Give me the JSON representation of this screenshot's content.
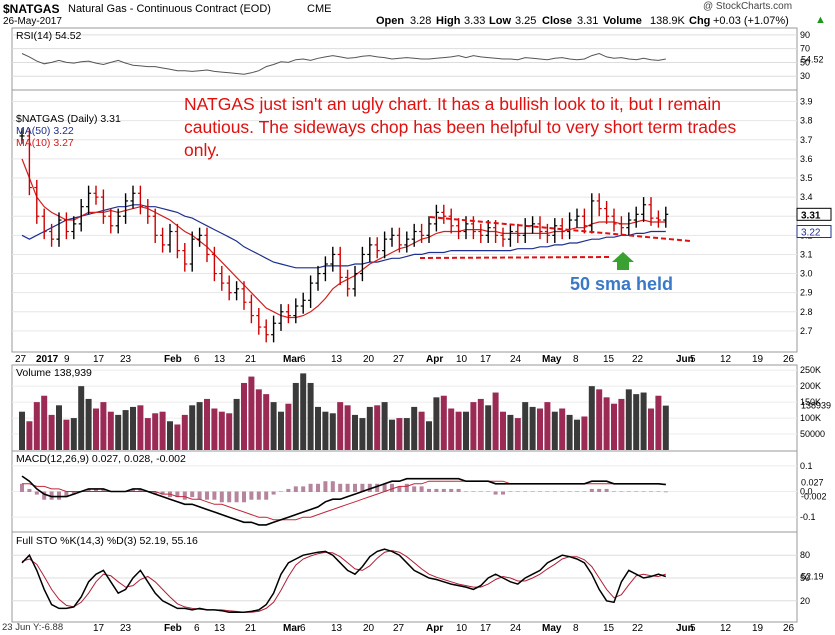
{
  "header": {
    "symbol": "$NATGAS",
    "name": "Natural Gas - Continuous Contract (EOD)",
    "exchange": "CME",
    "date": "26-May-2017",
    "open_label": "Open",
    "open": "3.28",
    "high_label": "High",
    "high": "3.33",
    "low_label": "Low",
    "low": "3.25",
    "close_label": "Close",
    "close": "3.31",
    "volume_label": "Volume",
    "volume": "138.9K",
    "chg_label": "Chg",
    "chg": "+0.03 (+1.07%)",
    "chg_arrow": "▲",
    "copyright": "@ StockCharts.com"
  },
  "annotation": {
    "text": "NATGAS just isn't an ugly chart.  It has a bullish look to it, but I remain cautious.  The sideways chop has been helpful to very short term trades only.",
    "callout": "50 sma held"
  },
  "colors": {
    "annotation_red": "#e01010",
    "callout_blue": "#3a78c8",
    "arrow_green": "#3aa032",
    "ma50": "#1f2f8f",
    "ma10": "#d21f1f",
    "up_bar": "#000000",
    "down_bar": "#cc0000",
    "volume_up": "#3a3a3a",
    "volume_down": "#9b2a55"
  },
  "chart_data": [
    {
      "type": "line",
      "panel": "rsi",
      "legend": "RSI(14) 54.52",
      "last_value": "54.52",
      "ylim": [
        10,
        100
      ],
      "yticks": [
        "90",
        "70",
        "50",
        "30"
      ],
      "values": [
        63,
        58,
        52,
        48,
        50,
        53,
        50,
        49,
        51,
        52,
        49,
        47,
        50,
        53,
        49,
        46,
        45,
        44,
        44,
        42,
        40,
        38,
        38,
        37,
        38,
        39,
        37,
        36,
        35,
        34,
        33,
        35,
        38,
        44,
        47,
        51,
        50,
        54,
        55,
        53,
        56,
        58,
        60,
        58,
        56,
        57,
        59,
        60,
        58,
        57,
        55,
        56,
        57,
        56,
        55,
        55,
        56,
        57,
        58,
        60,
        57,
        60,
        58,
        57,
        56,
        55,
        55,
        54,
        57,
        56,
        55,
        54,
        56,
        57,
        55,
        54,
        55,
        60,
        63,
        58,
        56,
        57,
        55,
        54,
        56,
        54,
        53,
        55
      ]
    },
    {
      "type": "ohlc",
      "panel": "price",
      "legend": [
        "$NATGAS (Daily) 3.31",
        "MA(50) 3.22",
        "MA(10) 3.27"
      ],
      "ylim": [
        2.6,
        3.95
      ],
      "yticks": [
        "3.9",
        "3.8",
        "3.7",
        "3.6",
        "3.5",
        "3.4",
        "3.3",
        "3.2",
        "3.1",
        "3.0",
        "2.9",
        "2.8",
        "2.7"
      ],
      "x_labels": [
        "27",
        "2017",
        "9",
        "17",
        "23",
        "Feb",
        "6",
        "13",
        "21",
        "Mar",
        "6",
        "13",
        "20",
        "27",
        "Apr",
        "10",
        "17",
        "24",
        "May",
        "8",
        "15",
        "22",
        "Jun",
        "5",
        "12",
        "19",
        "26"
      ],
      "last_value": "3.31",
      "ma50_last": "3.22",
      "close": [
        3.72,
        3.45,
        3.3,
        3.22,
        3.18,
        3.28,
        3.22,
        3.26,
        3.35,
        3.42,
        3.4,
        3.3,
        3.25,
        3.3,
        3.38,
        3.42,
        3.35,
        3.3,
        3.2,
        3.15,
        3.22,
        3.12,
        3.05,
        3.18,
        3.2,
        3.1,
        3.0,
        2.95,
        2.9,
        2.92,
        2.85,
        2.78,
        2.72,
        2.68,
        2.74,
        2.8,
        2.78,
        2.83,
        2.86,
        2.95,
        3.0,
        3.05,
        3.1,
        2.98,
        2.92,
        3.0,
        3.1,
        3.15,
        3.12,
        3.18,
        3.2,
        3.15,
        3.18,
        3.22,
        3.2,
        3.26,
        3.32,
        3.3,
        3.25,
        3.22,
        3.26,
        3.22,
        3.2,
        3.24,
        3.2,
        3.18,
        3.22,
        3.2,
        3.25,
        3.26,
        3.22,
        3.2,
        3.25,
        3.22,
        3.28,
        3.3,
        3.25,
        3.38,
        3.34,
        3.3,
        3.26,
        3.24,
        3.28,
        3.31,
        3.36,
        3.29,
        3.28,
        3.31
      ],
      "ma50": [
        3.2,
        3.18,
        3.2,
        3.22,
        3.24,
        3.26,
        3.28,
        3.29,
        3.3,
        3.31,
        3.32,
        3.33,
        3.34,
        3.35,
        3.35,
        3.36,
        3.36,
        3.35,
        3.35,
        3.34,
        3.33,
        3.32,
        3.3,
        3.29,
        3.27,
        3.25,
        3.23,
        3.21,
        3.19,
        3.17,
        3.14,
        3.12,
        3.1,
        3.08,
        3.06,
        3.05,
        3.04,
        3.03,
        3.03,
        3.03,
        3.03,
        3.04,
        3.04,
        3.04,
        3.04,
        3.05,
        3.05,
        3.06,
        3.06,
        3.07,
        3.08,
        3.08,
        3.09,
        3.1,
        3.1,
        3.11,
        3.11,
        3.11,
        3.12,
        3.12,
        3.12,
        3.12,
        3.12,
        3.12,
        3.12,
        3.12,
        3.12,
        3.13,
        3.13,
        3.13,
        3.14,
        3.14,
        3.15,
        3.15,
        3.16,
        3.16,
        3.17,
        3.18,
        3.18,
        3.19,
        3.19,
        3.2,
        3.2,
        3.21,
        3.21,
        3.22,
        3.22,
        3.22
      ],
      "ma10": [
        3.6,
        3.5,
        3.4,
        3.35,
        3.32,
        3.3,
        3.28,
        3.28,
        3.3,
        3.32,
        3.32,
        3.32,
        3.33,
        3.32,
        3.33,
        3.34,
        3.35,
        3.34,
        3.32,
        3.3,
        3.28,
        3.25,
        3.22,
        3.2,
        3.17,
        3.14,
        3.1,
        3.06,
        3.02,
        2.98,
        2.94,
        2.9,
        2.86,
        2.82,
        2.8,
        2.78,
        2.77,
        2.77,
        2.78,
        2.8,
        2.83,
        2.87,
        2.92,
        2.95,
        2.97,
        2.99,
        3.02,
        3.05,
        3.07,
        3.09,
        3.11,
        3.13,
        3.14,
        3.16,
        3.18,
        3.19,
        3.21,
        3.22,
        3.22,
        3.22,
        3.23,
        3.23,
        3.23,
        3.22,
        3.22,
        3.21,
        3.21,
        3.21,
        3.21,
        3.21,
        3.21,
        3.21,
        3.22,
        3.22,
        3.23,
        3.24,
        3.24,
        3.26,
        3.27,
        3.27,
        3.27,
        3.26,
        3.26,
        3.27,
        3.28,
        3.27,
        3.27,
        3.27
      ]
    },
    {
      "type": "bar",
      "panel": "volume",
      "legend": "Volume 138,939",
      "last_value": "138939",
      "ylim": [
        0,
        260000
      ],
      "yticks": [
        "250K",
        "200K",
        "150K",
        "100K",
        "50000"
      ],
      "values": [
        120000,
        90000,
        150000,
        170000,
        110000,
        140000,
        95000,
        100000,
        200000,
        160000,
        130000,
        150000,
        120000,
        110000,
        125000,
        135000,
        140000,
        100000,
        115000,
        120000,
        90000,
        80000,
        110000,
        140000,
        150000,
        160000,
        130000,
        120000,
        115000,
        160000,
        210000,
        230000,
        190000,
        175000,
        150000,
        120000,
        145000,
        210000,
        240000,
        210000,
        135000,
        120000,
        115000,
        150000,
        140000,
        110000,
        100000,
        135000,
        140000,
        150000,
        95000,
        100000,
        100000,
        135000,
        120000,
        90000,
        165000,
        170000,
        130000,
        120000,
        120000,
        150000,
        160000,
        140000,
        180000,
        120000,
        110000,
        100000,
        150000,
        135000,
        130000,
        150000,
        120000,
        130000,
        110000,
        95000,
        105000,
        200000,
        190000,
        165000,
        145000,
        160000,
        190000,
        175000,
        180000,
        130000,
        170000,
        139000
      ]
    },
    {
      "type": "line",
      "panel": "macd",
      "legend": "MACD(12,26,9) 0.027, 0.028, -0.002",
      "values_text": [
        "0.027",
        "0.028",
        "-0.002"
      ],
      "ylim": [
        -0.15,
        0.15
      ],
      "yticks": [
        "0.1",
        "0.0",
        "-0.1"
      ],
      "macd": [
        0.06,
        0.04,
        0.01,
        -0.01,
        -0.02,
        -0.02,
        -0.02,
        -0.01,
        0.0,
        0.01,
        0.01,
        0.01,
        0.0,
        0.0,
        0.0,
        0.01,
        0.01,
        0.0,
        -0.01,
        -0.02,
        -0.03,
        -0.04,
        -0.05,
        -0.05,
        -0.06,
        -0.07,
        -0.08,
        -0.09,
        -0.1,
        -0.11,
        -0.12,
        -0.12,
        -0.13,
        -0.13,
        -0.12,
        -0.11,
        -0.1,
        -0.09,
        -0.08,
        -0.07,
        -0.06,
        -0.04,
        -0.03,
        -0.03,
        -0.02,
        -0.01,
        0.0,
        0.01,
        0.02,
        0.03,
        0.04,
        0.04,
        0.05,
        0.05,
        0.05,
        0.05,
        0.05,
        0.05,
        0.05,
        0.05,
        0.04,
        0.04,
        0.04,
        0.04,
        0.03,
        0.03,
        0.03,
        0.03,
        0.03,
        0.03,
        0.03,
        0.03,
        0.03,
        0.03,
        0.03,
        0.03,
        0.03,
        0.04,
        0.04,
        0.04,
        0.03,
        0.03,
        0.03,
        0.03,
        0.03,
        0.03,
        0.03,
        0.027
      ],
      "signal": [
        0.03,
        0.03,
        0.02,
        0.02,
        0.01,
        0.01,
        0.0,
        0.0,
        0.0,
        0.0,
        0.0,
        0.0,
        0.0,
        0.0,
        0.0,
        0.0,
        0.0,
        0.0,
        0.0,
        -0.01,
        -0.01,
        -0.02,
        -0.02,
        -0.03,
        -0.03,
        -0.04,
        -0.05,
        -0.05,
        -0.06,
        -0.07,
        -0.08,
        -0.09,
        -0.1,
        -0.1,
        -0.11,
        -0.11,
        -0.11,
        -0.11,
        -0.1,
        -0.1,
        -0.09,
        -0.08,
        -0.07,
        -0.06,
        -0.05,
        -0.04,
        -0.03,
        -0.02,
        -0.01,
        0.0,
        0.01,
        0.02,
        0.02,
        0.03,
        0.03,
        0.04,
        0.04,
        0.04,
        0.04,
        0.04,
        0.04,
        0.04,
        0.04,
        0.04,
        0.04,
        0.04,
        0.03,
        0.03,
        0.03,
        0.03,
        0.03,
        0.03,
        0.03,
        0.03,
        0.03,
        0.03,
        0.03,
        0.03,
        0.03,
        0.03,
        0.03,
        0.03,
        0.03,
        0.03,
        0.03,
        0.03,
        0.03,
        0.028
      ]
    },
    {
      "type": "line",
      "panel": "stochastic",
      "legend": "Full STO %K(14,3) %D(3) 52.19, 55.16",
      "last_value": "52.19",
      "ylim": [
        0,
        100
      ],
      "yticks": [
        "80",
        "50",
        "20"
      ],
      "k": [
        70,
        80,
        60,
        35,
        15,
        10,
        10,
        12,
        25,
        45,
        55,
        60,
        45,
        30,
        35,
        50,
        60,
        45,
        30,
        20,
        15,
        10,
        10,
        8,
        10,
        8,
        8,
        7,
        5,
        5,
        5,
        6,
        8,
        15,
        30,
        55,
        70,
        75,
        80,
        82,
        84,
        85,
        80,
        70,
        60,
        55,
        65,
        78,
        85,
        88,
        85,
        80,
        70,
        60,
        55,
        50,
        48,
        45,
        42,
        40,
        38,
        35,
        40,
        50,
        55,
        50,
        45,
        42,
        50,
        55,
        60,
        70,
        75,
        80,
        78,
        75,
        70,
        55,
        35,
        20,
        18,
        45,
        60,
        55,
        50,
        52,
        55,
        52
      ],
      "d": [
        72,
        75,
        68,
        52,
        35,
        22,
        14,
        12,
        18,
        30,
        45,
        55,
        53,
        45,
        38,
        40,
        48,
        52,
        45,
        35,
        25,
        16,
        12,
        10,
        9,
        8,
        8,
        8,
        7,
        6,
        5,
        5,
        6,
        10,
        18,
        34,
        52,
        67,
        75,
        79,
        82,
        84,
        83,
        78,
        70,
        62,
        60,
        66,
        76,
        84,
        86,
        84,
        78,
        70,
        62,
        55,
        51,
        48,
        45,
        42,
        40,
        38,
        38,
        42,
        48,
        52,
        50,
        46,
        46,
        50,
        55,
        62,
        68,
        75,
        78,
        78,
        74,
        65,
        50,
        35,
        24,
        28,
        41,
        53,
        55,
        53,
        52,
        55.16
      ]
    }
  ],
  "footer": {
    "note": "23 Jun Y:-6.88",
    "x_labels": [
      "17",
      "23",
      "Feb",
      "6",
      "13",
      "21",
      "Mar",
      "6",
      "13",
      "20",
      "27",
      "Apr",
      "10",
      "17",
      "24",
      "May",
      "8",
      "15",
      "22",
      "Jun",
      "5",
      "12",
      "19",
      "26"
    ]
  }
}
